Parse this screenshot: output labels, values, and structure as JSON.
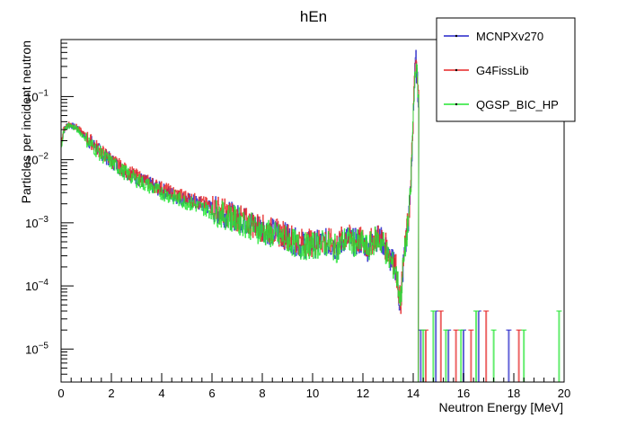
{
  "chart_data": {
    "type": "line",
    "title": "hEn",
    "xlabel": "Neutron Energy [MeV]",
    "ylabel": "Particles per incident neutron",
    "xlim": [
      0,
      20
    ],
    "ylim": [
      3e-06,
      0.8
    ],
    "yscale": "log",
    "x_ticks": [
      "0",
      "2",
      "4",
      "6",
      "8",
      "10",
      "12",
      "14",
      "16",
      "18",
      "20"
    ],
    "y_ticks": [
      {
        "value": 1e-05,
        "base": "10",
        "exp": "−5"
      },
      {
        "value": 0.0001,
        "base": "10",
        "exp": "−4"
      },
      {
        "value": 0.001,
        "base": "10",
        "exp": "−3"
      },
      {
        "value": 0.01,
        "base": "10",
        "exp": "−2"
      },
      {
        "value": 0.1,
        "base": "10",
        "exp": "−1"
      }
    ],
    "legend_position": "top-right",
    "series": [
      {
        "name": "MCNPXv270",
        "color": "#2323c8",
        "x": [
          0.0,
          0.1,
          0.2,
          0.3,
          0.4,
          0.6,
          0.8,
          1.0,
          1.5,
          2.0,
          2.5,
          3.0,
          3.5,
          4.0,
          4.5,
          5.0,
          5.5,
          6.0,
          6.5,
          7.0,
          7.5,
          8.0,
          8.5,
          9.0,
          9.5,
          10.0,
          10.5,
          11.0,
          11.3,
          11.6,
          12.0,
          12.2,
          12.5,
          12.8,
          13.0,
          13.3,
          13.5,
          13.6,
          13.8,
          13.9,
          14.0,
          14.1,
          14.2
        ],
        "y": [
          0.017,
          0.028,
          0.034,
          0.036,
          0.035,
          0.032,
          0.027,
          0.022,
          0.014,
          0.0095,
          0.0068,
          0.0052,
          0.0041,
          0.0033,
          0.0027,
          0.0023,
          0.002,
          0.0017,
          0.0014,
          0.0012,
          0.001,
          0.0008,
          0.0007,
          0.0006,
          0.00045,
          0.00045,
          0.0005,
          0.0004,
          0.0006,
          0.0005,
          0.0005,
          0.0004,
          0.0006,
          0.0005,
          0.0003,
          0.0002,
          4e-05,
          0.0002,
          0.001,
          0.003,
          0.05,
          0.4,
          0.1
        ]
      },
      {
        "name": "G4FissLib",
        "color": "#e62323",
        "x": [
          0.0,
          0.1,
          0.2,
          0.3,
          0.4,
          0.6,
          0.8,
          1.0,
          1.5,
          2.0,
          2.5,
          3.0,
          3.5,
          4.0,
          4.5,
          5.0,
          5.5,
          6.0,
          6.5,
          7.0,
          7.5,
          8.0,
          8.5,
          9.0,
          9.5,
          10.0,
          10.5,
          11.0,
          11.3,
          11.6,
          12.0,
          12.2,
          12.5,
          12.8,
          13.0,
          13.3,
          13.5,
          13.6,
          13.8,
          13.9,
          14.0,
          14.1,
          14.2
        ],
        "y": [
          0.018,
          0.029,
          0.035,
          0.037,
          0.036,
          0.033,
          0.028,
          0.023,
          0.0145,
          0.0098,
          0.007,
          0.0054,
          0.0043,
          0.0035,
          0.0029,
          0.0025,
          0.0021,
          0.0018,
          0.0015,
          0.0012,
          0.001,
          0.00082,
          0.00072,
          0.00062,
          0.0005,
          0.00048,
          0.00052,
          0.00045,
          0.00062,
          0.00052,
          0.00052,
          0.00042,
          0.00062,
          0.00052,
          0.00035,
          0.00022,
          5e-05,
          0.00022,
          0.0011,
          0.0032,
          0.05,
          0.42,
          0.1
        ]
      },
      {
        "name": "QGSP_BIC_HP",
        "color": "#23e632",
        "x": [
          0.0,
          0.1,
          0.2,
          0.3,
          0.4,
          0.6,
          0.8,
          1.0,
          1.5,
          2.0,
          2.5,
          3.0,
          3.5,
          4.0,
          4.5,
          5.0,
          5.5,
          6.0,
          6.5,
          7.0,
          7.5,
          8.0,
          8.5,
          9.0,
          9.5,
          10.0,
          10.5,
          11.0,
          11.3,
          11.6,
          12.0,
          12.2,
          12.5,
          12.8,
          13.0,
          13.3,
          13.5,
          13.6,
          13.8,
          13.9,
          14.0,
          14.1,
          14.2
        ],
        "y": [
          0.016,
          0.027,
          0.033,
          0.035,
          0.034,
          0.031,
          0.026,
          0.021,
          0.013,
          0.009,
          0.0064,
          0.0048,
          0.0038,
          0.003,
          0.0025,
          0.0021,
          0.0018,
          0.0015,
          0.0013,
          0.0011,
          0.0009,
          0.00072,
          0.00062,
          0.00055,
          0.00042,
          0.00043,
          0.00048,
          0.00038,
          0.00055,
          0.00048,
          0.00046,
          0.00038,
          0.00055,
          0.00048,
          0.00028,
          0.00018,
          6e-05,
          0.0002,
          0.001,
          0.003,
          0.05,
          0.4,
          0.1
        ]
      }
    ],
    "tail_points": {
      "MCNPXv270": [
        14.3,
        14.9,
        15.4,
        16.0,
        16.6,
        17.8
      ],
      "G4FissLib": [
        14.5,
        15.1,
        15.7,
        16.3,
        16.9,
        18.2
      ],
      "QGSP_BIC_HP": [
        14.4,
        14.8,
        15.3,
        15.9,
        16.5,
        17.2,
        18.4,
        19.8
      ]
    },
    "tail_value": 2e-05,
    "tail_high_value": 4e-05
  }
}
